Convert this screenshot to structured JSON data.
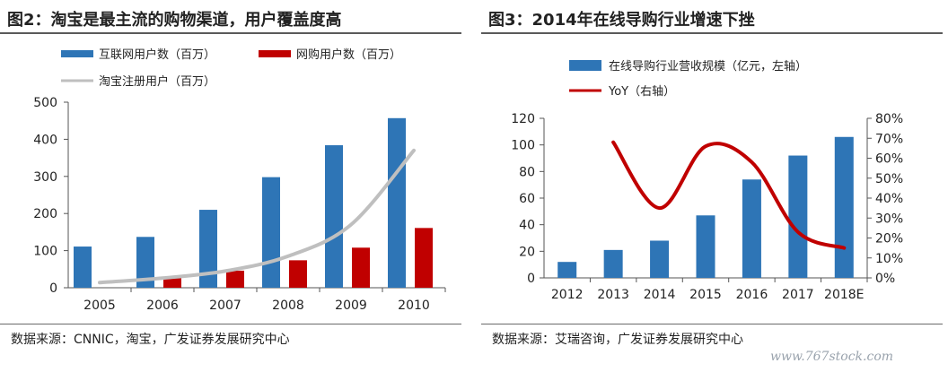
{
  "left": {
    "title": "图2：淘宝是最主流的购物渠道，用户覆盖度高",
    "source": "数据来源：CNNIC，淘宝，广发证券发展研究中心",
    "chart_data": {
      "type": "bar",
      "categories": [
        "2005",
        "2006",
        "2007",
        "2008",
        "2009",
        "2010"
      ],
      "series": [
        {
          "name": "互联网用户数（百万）",
          "kind": "bar",
          "color": "#2e75b6",
          "values": [
            111,
            137,
            210,
            298,
            384,
            457
          ]
        },
        {
          "name": "网购用户数（百万）",
          "kind": "bar",
          "color": "#c00000",
          "values": [
            null,
            30,
            46,
            74,
            108,
            161
          ]
        },
        {
          "name": "淘宝注册用户（百万）",
          "kind": "line",
          "color": "#bfbfbf",
          "values": [
            14,
            26,
            45,
            85,
            170,
            370
          ]
        }
      ],
      "ylim": [
        0,
        500
      ],
      "yticks": [
        "0",
        "100",
        "200",
        "300",
        "400",
        "500"
      ],
      "legend_position": "top"
    }
  },
  "right": {
    "title": "图3：2014年在线导购行业增速下挫",
    "source": "数据来源：艾瑞咨询，广发证券发展研究中心",
    "chart_data": {
      "type": "bar",
      "categories": [
        "2012",
        "2013",
        "2014",
        "2015",
        "2016",
        "2017",
        "2018E"
      ],
      "series": [
        {
          "name": "在线导购行业营收规模（亿元，左轴）",
          "kind": "bar",
          "axis": "left",
          "color": "#2e75b6",
          "values": [
            12,
            21,
            28,
            47,
            74,
            92,
            106
          ]
        },
        {
          "name": "YoY（右轴）",
          "kind": "line",
          "axis": "right",
          "color": "#c00000",
          "values": [
            null,
            68,
            35,
            66,
            58,
            23,
            15
          ]
        }
      ],
      "ylim_left": [
        0,
        120
      ],
      "yticks_left": [
        "0",
        "20",
        "40",
        "60",
        "80",
        "100",
        "120"
      ],
      "ylim_right": [
        0,
        80
      ],
      "yticks_right": [
        "0%",
        "10%",
        "20%",
        "30%",
        "40%",
        "50%",
        "60%",
        "70%",
        "80%"
      ],
      "legend_position": "top"
    }
  },
  "watermark": "www.767stock.com"
}
